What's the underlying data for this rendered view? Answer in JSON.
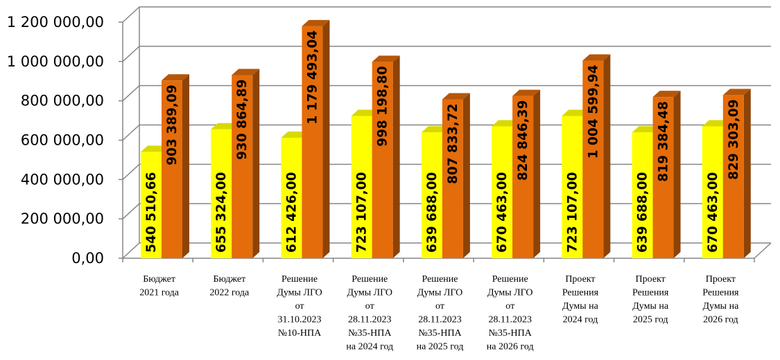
{
  "chart_data": {
    "type": "bar",
    "style": "3d-clustered-column",
    "ylim": [
      0,
      1200000
    ],
    "y_ticks": [
      "0,00",
      "200 000,00",
      "400 000,00",
      "600 000,00",
      "800 000,00",
      "1 000 000,00",
      "1 200 000,00"
    ],
    "y_tick_values": [
      0,
      200000,
      400000,
      600000,
      800000,
      1000000,
      1200000
    ],
    "grid": true,
    "categories": [
      [
        "Бюджет",
        "2021 года"
      ],
      [
        "Бюджет",
        "2022 года"
      ],
      [
        "Решение",
        "Думы ЛГО",
        "от",
        "31.10.2023",
        "№10-НПА"
      ],
      [
        "Решение",
        "Думы ЛГО",
        "от",
        "28.11.2023",
        "№35-НПА",
        "на 2024 год"
      ],
      [
        "Решение",
        "Думы ЛГО",
        "от",
        "28.11.2023",
        "№35-НПА",
        "на 2025 год"
      ],
      [
        "Решение",
        "Думы ЛГО",
        "от",
        "28.11.2023",
        "№35-НПА",
        "на 2026 год"
      ],
      [
        "Проект",
        "Решения",
        "Думы на",
        "2024 год"
      ],
      [
        "Проект",
        "Решения",
        "Думы на",
        "2025 год"
      ],
      [
        "Проект",
        "Решения",
        "Думы на",
        "2026 год"
      ]
    ],
    "series": [
      {
        "color": "#ffff00",
        "values": [
          540510.66,
          655324.0,
          612426.0,
          723107.0,
          639688.0,
          670463.0,
          723107.0,
          639688.0,
          670463.0
        ],
        "labels": [
          "540 510,66",
          "655 324,00",
          "612 426,00",
          "723 107,00",
          "639 688,00",
          "670 463,00",
          "723 107,00",
          "639 688,00",
          "670 463,00"
        ]
      },
      {
        "color": "#e46c0a",
        "values": [
          903389.09,
          930864.89,
          1179493.04,
          998198.8,
          807833.72,
          824846.39,
          1004599.94,
          819384.48,
          829303.09
        ],
        "labels": [
          "903 389,09",
          "930 864,89",
          "1 179 493,04",
          "998 198,80",
          "807 833,72",
          "824 846,39",
          "1 004 599,94",
          "819 384,48",
          "829 303,09"
        ]
      }
    ]
  }
}
